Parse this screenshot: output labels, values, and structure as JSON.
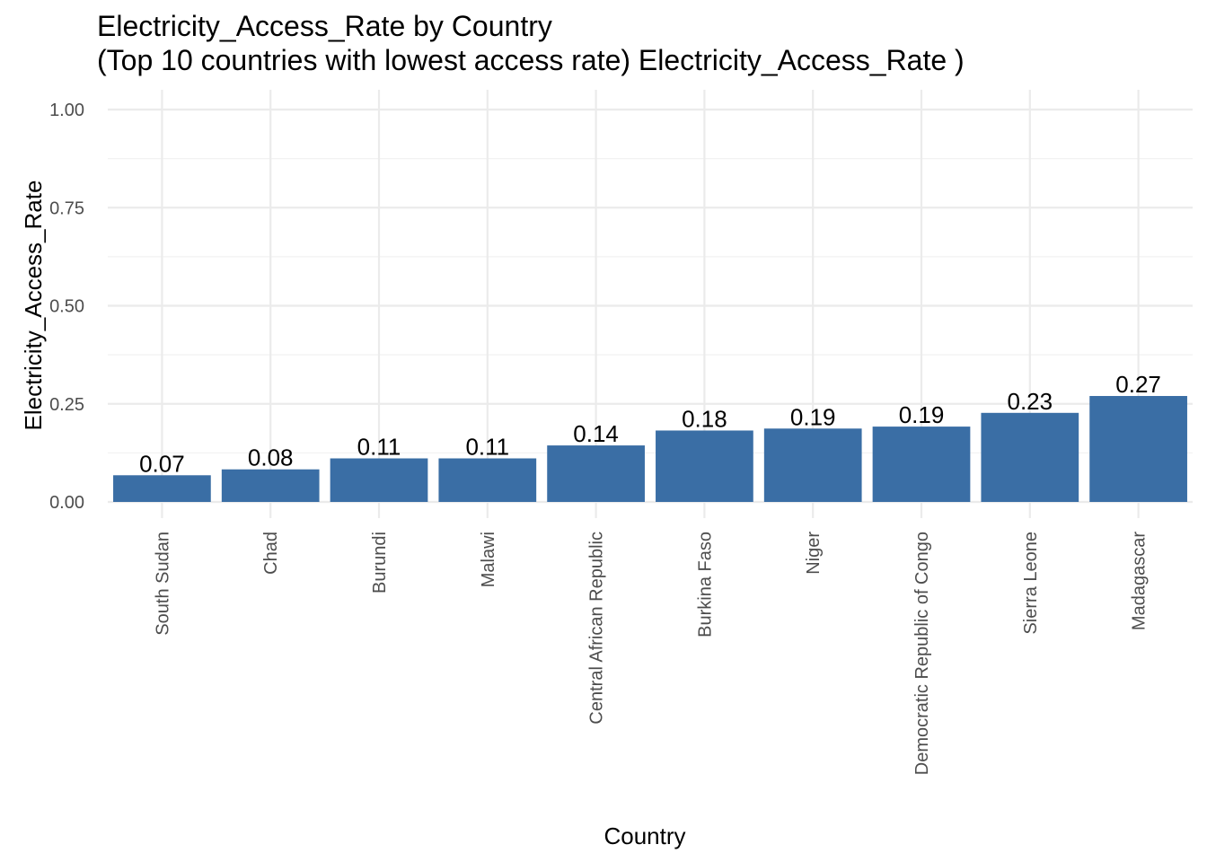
{
  "chart_data": {
    "type": "bar",
    "title_line1": "Electricity_Access_Rate by Country",
    "title_line2": "(Top 10 countries with lowest access rate) Electricity_Access_Rate )",
    "xlabel": "Country",
    "ylabel": "Electricity_Access_Rate",
    "categories": [
      "South Sudan",
      "Chad",
      "Burundi",
      "Malawi",
      "Central African Republic",
      "Burkina Faso",
      "Niger",
      "Democratic Republic of Congo",
      "Sierra Leone",
      "Madagascar"
    ],
    "values": [
      0.068,
      0.083,
      0.111,
      0.111,
      0.144,
      0.182,
      0.187,
      0.192,
      0.227,
      0.27
    ],
    "value_labels": [
      "0.07",
      "0.08",
      "0.11",
      "0.11",
      "0.14",
      "0.18",
      "0.19",
      "0.19",
      "0.23",
      "0.27"
    ],
    "ylim": [
      0,
      1.0
    ],
    "yticks": [
      0,
      0.25,
      0.5,
      0.75,
      1.0
    ],
    "ytick_labels": [
      "0.00",
      "0.25",
      "0.50",
      "0.75",
      "1.00"
    ],
    "bar_color": "#3a6ea5",
    "grid": true,
    "legend": "none"
  }
}
